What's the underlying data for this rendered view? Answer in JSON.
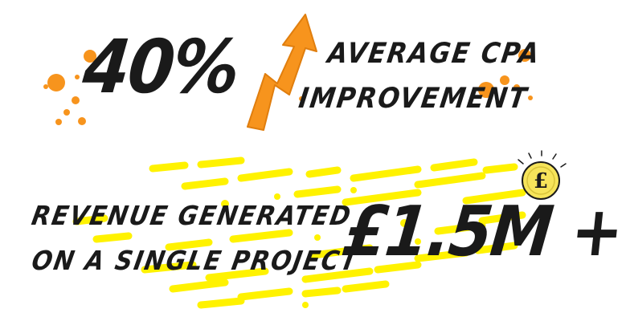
{
  "stat_cpa": {
    "value": "40%",
    "label_line1": "AVERAGE CPA",
    "label_line2": "IMPROVEMENT"
  },
  "stat_revenue": {
    "value": "£1.5M +",
    "label_line1": "REVENUE GENERATED",
    "label_line2": "ON A SINGLE PROJECT"
  },
  "colors": {
    "orange": "#f7941d",
    "yellow": "#fff200",
    "gold": "#f6e45a",
    "ink": "#1a1a1a"
  },
  "icons": {
    "arrow": "arrow-up-icon",
    "coin": "pound-coin-icon"
  }
}
